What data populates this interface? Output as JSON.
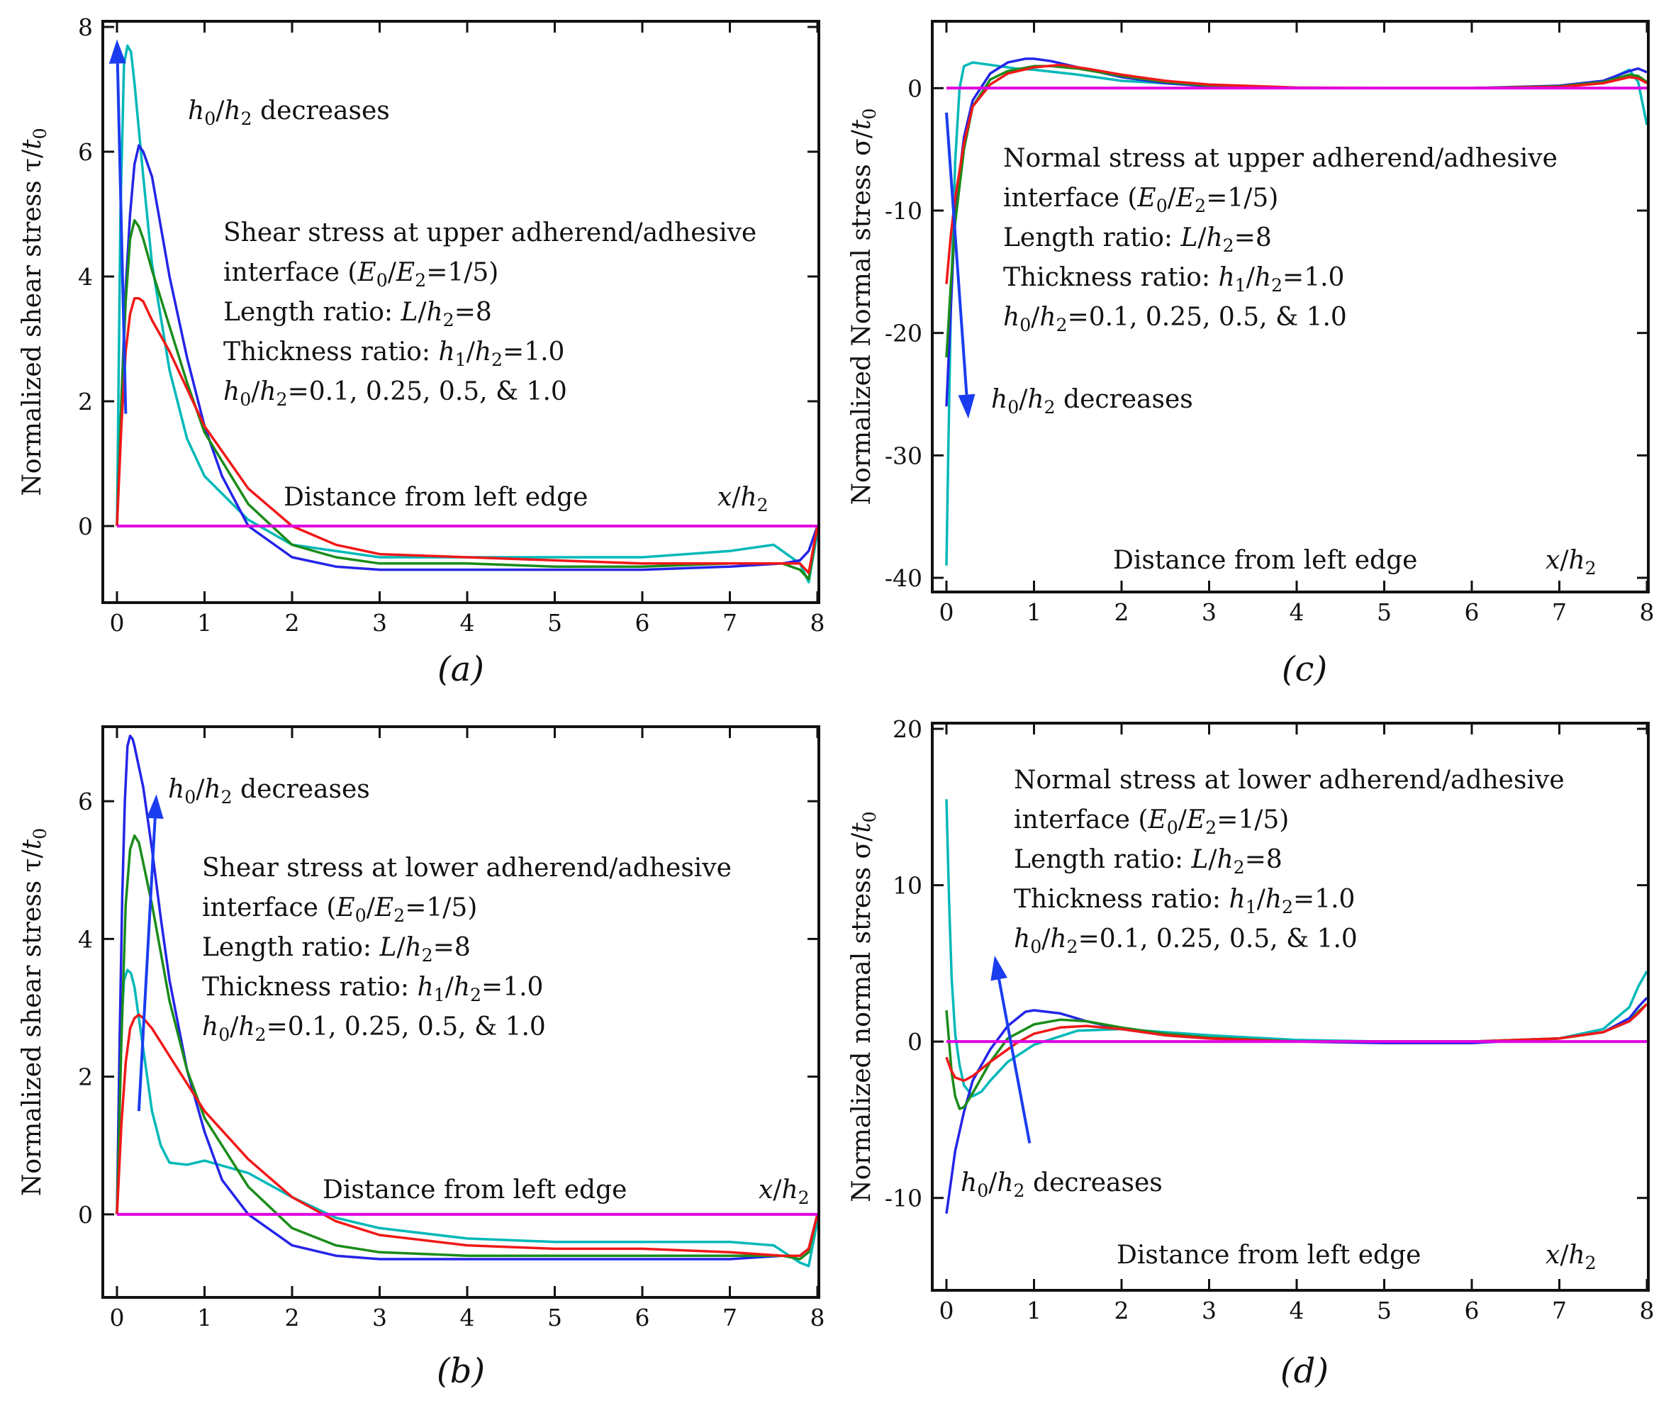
{
  "figure": {
    "colors": {
      "h0_0_1": "#00b8b8",
      "h0_0_25": "#2424e8",
      "h0_0_5": "#1a8c1a",
      "h0_1_0": "#f01818",
      "zero_line": "#e000e0",
      "arrow": "#1a3df0"
    }
  },
  "chart_data": [
    {
      "panel": "a",
      "type": "line",
      "caption": "(a)",
      "ylabel": "Normalized shear stress τ/t0",
      "xlabel": "Distance from left edge",
      "xlabel_sym": "x/h2",
      "xlim": [
        0,
        8
      ],
      "ylim": [
        -1,
        8
      ],
      "xticks": [
        0,
        1,
        2,
        3,
        4,
        5,
        6,
        7,
        8
      ],
      "yticks": [
        0,
        2,
        4,
        6,
        8
      ],
      "annotation_lines": [
        "Shear stress at upper adherend/adhesive",
        "interface (E0/E2=1/5)",
        "Length ratio: L/h2=8",
        "Thickness ratio: h1/h2=1.0",
        "h0/h2=0.1, 0.25, 0.5, & 1.0"
      ],
      "arrow_label": "h0/h2 decreases",
      "arrow": {
        "from": [
          0.1,
          1.8
        ],
        "to": [
          0.0,
          7.8
        ]
      },
      "series": [
        {
          "name": "h0/h2=0.1",
          "color_key": "h0_0_1",
          "x": [
            0,
            0.04,
            0.08,
            0.12,
            0.16,
            0.2,
            0.3,
            0.4,
            0.6,
            0.8,
            1.0,
            1.5,
            2,
            3,
            4,
            5,
            6,
            7,
            7.5,
            7.8,
            7.9,
            8
          ],
          "y": [
            0,
            5.0,
            7.4,
            7.7,
            7.6,
            7.1,
            5.6,
            4.2,
            2.5,
            1.4,
            0.8,
            0.1,
            -0.3,
            -0.5,
            -0.5,
            -0.5,
            -0.5,
            -0.4,
            -0.3,
            -0.6,
            -0.9,
            -0.1
          ]
        },
        {
          "name": "h0/h2=0.25",
          "color_key": "h0_0_25",
          "x": [
            0,
            0.05,
            0.1,
            0.15,
            0.2,
            0.25,
            0.3,
            0.4,
            0.5,
            0.6,
            0.8,
            1.0,
            1.2,
            1.5,
            2,
            2.5,
            3,
            4,
            5,
            6,
            7,
            7.6,
            7.8,
            7.9,
            8
          ],
          "y": [
            0,
            2.0,
            3.8,
            5.0,
            5.8,
            6.1,
            6.0,
            5.6,
            4.8,
            4.0,
            2.7,
            1.6,
            0.8,
            0.0,
            -0.5,
            -0.65,
            -0.7,
            -0.7,
            -0.7,
            -0.7,
            -0.65,
            -0.6,
            -0.55,
            -0.4,
            0
          ]
        },
        {
          "name": "h0/h2=0.5",
          "color_key": "h0_0_5",
          "x": [
            0,
            0.05,
            0.1,
            0.15,
            0.2,
            0.25,
            0.3,
            0.4,
            0.6,
            0.8,
            1.0,
            1.5,
            2,
            2.5,
            3,
            4,
            5,
            6,
            7,
            7.6,
            7.8,
            7.9,
            8
          ],
          "y": [
            0,
            2.0,
            3.6,
            4.6,
            4.9,
            4.8,
            4.6,
            4.1,
            3.2,
            2.3,
            1.5,
            0.35,
            -0.3,
            -0.5,
            -0.6,
            -0.6,
            -0.65,
            -0.65,
            -0.6,
            -0.6,
            -0.7,
            -0.85,
            0
          ]
        },
        {
          "name": "h0/h2=1.0",
          "color_key": "h0_1_0",
          "x": [
            0,
            0.05,
            0.1,
            0.15,
            0.2,
            0.25,
            0.3,
            0.4,
            0.6,
            0.8,
            1.0,
            1.5,
            2,
            2.5,
            3,
            4,
            5,
            6,
            7,
            7.6,
            7.8,
            7.9,
            8
          ],
          "y": [
            0,
            1.6,
            2.8,
            3.4,
            3.65,
            3.65,
            3.6,
            3.3,
            2.8,
            2.2,
            1.6,
            0.6,
            0.0,
            -0.3,
            -0.45,
            -0.5,
            -0.55,
            -0.6,
            -0.6,
            -0.6,
            -0.6,
            -0.75,
            0
          ]
        },
        {
          "name": "zero",
          "color_key": "zero_line",
          "x": [
            0,
            8
          ],
          "y": [
            0,
            0
          ]
        }
      ]
    },
    {
      "panel": "b",
      "type": "line",
      "caption": "(b)",
      "ylabel": "Normalized shear stress τ/t0",
      "xlabel": "Distance from left edge",
      "xlabel_sym": "x/h2",
      "xlim": [
        0,
        8
      ],
      "ylim": [
        -1,
        7
      ],
      "xticks": [
        0,
        1,
        2,
        3,
        4,
        5,
        6,
        7,
        8
      ],
      "yticks": [
        0,
        2,
        4,
        6
      ],
      "annotation_lines": [
        "Shear stress at lower adherend/adhesive",
        "interface (E0/E2=1/5)",
        "Length ratio: L/h2=8",
        "Thickness ratio: h1/h2=1.0",
        "h0/h2=0.1, 0.25, 0.5, & 1.0"
      ],
      "arrow_label": "h0/h2 decreases",
      "arrow": {
        "from": [
          0.25,
          1.5
        ],
        "to": [
          0.45,
          6.1
        ]
      },
      "series": [
        {
          "name": "h0/h2=0.1",
          "color_key": "h0_0_1",
          "x": [
            0,
            0.04,
            0.08,
            0.12,
            0.16,
            0.2,
            0.3,
            0.4,
            0.5,
            0.6,
            0.8,
            1.0,
            1.5,
            2,
            2.5,
            3,
            4,
            5,
            6,
            7,
            7.5,
            7.8,
            7.9,
            8
          ],
          "y": [
            0,
            2.5,
            3.4,
            3.55,
            3.5,
            3.3,
            2.4,
            1.5,
            1.0,
            0.75,
            0.72,
            0.78,
            0.6,
            0.25,
            -0.05,
            -0.2,
            -0.35,
            -0.4,
            -0.4,
            -0.4,
            -0.45,
            -0.7,
            -0.75,
            -0.1
          ]
        },
        {
          "name": "h0/h2=0.25",
          "color_key": "h0_0_25",
          "x": [
            0,
            0.03,
            0.06,
            0.09,
            0.12,
            0.15,
            0.18,
            0.2,
            0.3,
            0.4,
            0.5,
            0.6,
            0.8,
            1.0,
            1.2,
            1.5,
            2,
            2.5,
            3,
            4,
            5,
            6,
            7,
            7.6,
            7.8,
            7.9,
            8
          ],
          "y": [
            0,
            2.5,
            4.6,
            6.0,
            6.8,
            6.95,
            6.9,
            6.8,
            6.2,
            5.3,
            4.3,
            3.4,
            2.1,
            1.2,
            0.5,
            0.0,
            -0.45,
            -0.6,
            -0.65,
            -0.65,
            -0.65,
            -0.65,
            -0.65,
            -0.6,
            -0.6,
            -0.5,
            0
          ]
        },
        {
          "name": "h0/h2=0.5",
          "color_key": "h0_0_5",
          "x": [
            0,
            0.05,
            0.1,
            0.15,
            0.2,
            0.25,
            0.3,
            0.4,
            0.5,
            0.6,
            0.8,
            1.0,
            1.5,
            2,
            2.5,
            3,
            4,
            5,
            6,
            7,
            7.6,
            7.8,
            7.9,
            8
          ],
          "y": [
            0,
            2.5,
            4.5,
            5.3,
            5.5,
            5.4,
            5.1,
            4.5,
            3.8,
            3.1,
            2.1,
            1.4,
            0.4,
            -0.2,
            -0.45,
            -0.55,
            -0.6,
            -0.6,
            -0.6,
            -0.6,
            -0.6,
            -0.65,
            -0.55,
            0
          ]
        },
        {
          "name": "h0/h2=1.0",
          "color_key": "h0_1_0",
          "x": [
            0,
            0.05,
            0.1,
            0.15,
            0.2,
            0.25,
            0.3,
            0.4,
            0.5,
            0.6,
            0.8,
            1.0,
            1.5,
            2,
            2.5,
            3,
            4,
            5,
            6,
            7,
            7.6,
            7.8,
            7.9,
            8
          ],
          "y": [
            0,
            1.3,
            2.2,
            2.7,
            2.85,
            2.9,
            2.85,
            2.7,
            2.5,
            2.3,
            1.9,
            1.5,
            0.8,
            0.25,
            -0.1,
            -0.3,
            -0.45,
            -0.5,
            -0.5,
            -0.55,
            -0.6,
            -0.6,
            -0.5,
            0
          ]
        },
        {
          "name": "zero",
          "color_key": "zero_line",
          "x": [
            0,
            8
          ],
          "y": [
            0,
            0
          ]
        }
      ]
    },
    {
      "panel": "c",
      "type": "line",
      "caption": "(c)",
      "ylabel": "Normalized Normal stress σ/t0",
      "xlabel": "Distance from left edge",
      "xlabel_sym": "x/h2",
      "xlim": [
        0,
        8
      ],
      "ylim": [
        -40,
        5
      ],
      "xticks": [
        0,
        1,
        2,
        3,
        4,
        5,
        6,
        7,
        8
      ],
      "yticks": [
        -40,
        -30,
        -20,
        -10,
        0
      ],
      "annotation_lines": [
        "Normal stress at upper adherend/adhesive",
        "interface (E0/E2=1/5)",
        "Length ratio: L/h2=8",
        "Thickness ratio: h1/h2=1.0",
        "h0/h2=0.1, 0.25, 0.5, & 1.0"
      ],
      "arrow_label": "h0/h2 decreases",
      "arrow": {
        "from": [
          0.0,
          -2
        ],
        "to": [
          0.25,
          -27
        ]
      },
      "series": [
        {
          "name": "h0/h2=0.1",
          "color_key": "h0_0_1",
          "x": [
            0,
            0.02,
            0.05,
            0.1,
            0.15,
            0.2,
            0.3,
            0.4,
            0.5,
            0.6,
            0.8,
            1.0,
            1.5,
            2,
            3,
            4,
            5,
            6,
            7,
            7.5,
            7.8,
            7.9,
            8
          ],
          "y": [
            -39,
            -30,
            -18,
            -6,
            0,
            1.8,
            2.1,
            2.0,
            1.9,
            1.8,
            1.6,
            1.5,
            1.1,
            0.6,
            0.2,
            0,
            0,
            0,
            0.1,
            0.5,
            1.5,
            0.5,
            -3
          ]
        },
        {
          "name": "h0/h2=0.25",
          "color_key": "h0_0_25",
          "x": [
            0,
            0.05,
            0.1,
            0.2,
            0.3,
            0.5,
            0.7,
            0.9,
            1.0,
            1.2,
            1.5,
            2,
            2.5,
            3,
            4,
            5,
            6,
            7,
            7.5,
            7.8,
            7.9,
            8
          ],
          "y": [
            -26,
            -18,
            -10,
            -4,
            -1,
            1.2,
            2.1,
            2.4,
            2.4,
            2.2,
            1.7,
            0.9,
            0.4,
            0.15,
            0,
            0,
            0,
            0.2,
            0.6,
            1.4,
            1.6,
            1.3
          ]
        },
        {
          "name": "h0/h2=0.5",
          "color_key": "h0_0_5",
          "x": [
            0,
            0.05,
            0.1,
            0.2,
            0.3,
            0.5,
            0.7,
            1.0,
            1.2,
            1.5,
            2,
            2.5,
            3,
            4,
            5,
            6,
            7,
            7.5,
            7.8,
            7.9,
            8
          ],
          "y": [
            -22,
            -16,
            -11,
            -5,
            -1.5,
            0.7,
            1.4,
            1.8,
            1.8,
            1.6,
            1.0,
            0.5,
            0.2,
            0,
            0,
            0,
            0.15,
            0.5,
            1.1,
            1.0,
            0.5
          ]
        },
        {
          "name": "h0/h2=1.0",
          "color_key": "h0_1_0",
          "x": [
            0,
            0.05,
            0.1,
            0.2,
            0.3,
            0.5,
            0.7,
            1.0,
            1.3,
            1.6,
            2,
            2.5,
            3,
            4,
            5,
            6,
            7,
            7.5,
            7.8,
            7.9,
            8
          ],
          "y": [
            -16,
            -12,
            -9,
            -4.5,
            -1.5,
            0.3,
            1.2,
            1.7,
            1.9,
            1.6,
            1.1,
            0.6,
            0.3,
            0.05,
            0,
            0,
            0.1,
            0.4,
            0.9,
            0.8,
            0.4
          ]
        },
        {
          "name": "zero",
          "color_key": "zero_line",
          "x": [
            0,
            8
          ],
          "y": [
            0,
            0
          ]
        }
      ]
    },
    {
      "panel": "d",
      "type": "line",
      "caption": "(d)",
      "ylabel": "Normalized normal stress σ/t0",
      "xlabel": "Distance from left edge",
      "xlabel_sym": "x/h2",
      "xlim": [
        0,
        8
      ],
      "ylim": [
        -15,
        20
      ],
      "xticks": [
        0,
        1,
        2,
        3,
        4,
        5,
        6,
        7,
        8
      ],
      "yticks": [
        -10,
        0,
        10,
        20
      ],
      "annotation_lines": [
        "Normal stress at lower adherend/adhesive",
        "interface (E0/E2=1/5)",
        "Length ratio: L/h2=8",
        "Thickness ratio: h1/h2=1.0",
        "h0/h2=0.1, 0.25, 0.5, & 1.0"
      ],
      "arrow_label": "h0/h2 decreases",
      "arrow": {
        "from": [
          0.95,
          -6.5
        ],
        "to": [
          0.55,
          5.5
        ]
      },
      "series": [
        {
          "name": "h0/h2=0.1",
          "color_key": "h0_0_1",
          "x": [
            0,
            0.03,
            0.06,
            0.1,
            0.15,
            0.2,
            0.3,
            0.4,
            0.5,
            0.7,
            1.0,
            1.5,
            2,
            3,
            4,
            5,
            6,
            7,
            7.5,
            7.8,
            7.9,
            8
          ],
          "y": [
            15.5,
            9,
            4,
            0.5,
            -1.5,
            -2.8,
            -3.5,
            -3.2,
            -2.5,
            -1.3,
            -0.2,
            0.7,
            0.8,
            0.4,
            0.1,
            0,
            0,
            0.2,
            0.8,
            2.2,
            3.5,
            4.5
          ]
        },
        {
          "name": "h0/h2=0.25",
          "color_key": "h0_0_25",
          "x": [
            0,
            0.05,
            0.1,
            0.2,
            0.3,
            0.5,
            0.7,
            0.9,
            1.0,
            1.3,
            1.6,
            2,
            2.5,
            3,
            4,
            5,
            6,
            7,
            7.5,
            7.8,
            7.9,
            8
          ],
          "y": [
            -11,
            -9,
            -7,
            -4.5,
            -2.5,
            -0.5,
            1.0,
            1.9,
            2.0,
            1.8,
            1.3,
            0.8,
            0.4,
            0.2,
            0,
            -0.1,
            -0.1,
            0.2,
            0.6,
            1.5,
            2.2,
            2.8
          ]
        },
        {
          "name": "h0/h2=0.5",
          "color_key": "h0_0_5",
          "x": [
            0,
            0.03,
            0.06,
            0.1,
            0.15,
            0.2,
            0.3,
            0.5,
            0.7,
            1.0,
            1.3,
            1.6,
            2,
            2.5,
            3,
            4,
            5,
            6,
            7,
            7.5,
            7.8,
            7.9,
            8
          ],
          "y": [
            2,
            0,
            -2,
            -3.5,
            -4.3,
            -4.2,
            -3.3,
            -1.3,
            0.2,
            1.1,
            1.4,
            1.3,
            0.9,
            0.5,
            0.25,
            0,
            0,
            0,
            0.2,
            0.6,
            1.3,
            1.9,
            2.4
          ]
        },
        {
          "name": "h0/h2=1.0",
          "color_key": "h0_1_0",
          "x": [
            0,
            0.05,
            0.1,
            0.2,
            0.3,
            0.5,
            0.8,
            1.0,
            1.3,
            1.6,
            2,
            2.5,
            3,
            4,
            5,
            6,
            7,
            7.5,
            7.8,
            7.9,
            8
          ],
          "y": [
            -1,
            -1.8,
            -2.3,
            -2.5,
            -2.2,
            -1.3,
            -0.1,
            0.5,
            0.9,
            1.0,
            0.8,
            0.4,
            0.2,
            0,
            0,
            0,
            0.2,
            0.6,
            1.3,
            1.8,
            2.4
          ]
        },
        {
          "name": "zero",
          "color_key": "zero_line",
          "x": [
            0,
            8
          ],
          "y": [
            0,
            0
          ]
        }
      ]
    }
  ]
}
